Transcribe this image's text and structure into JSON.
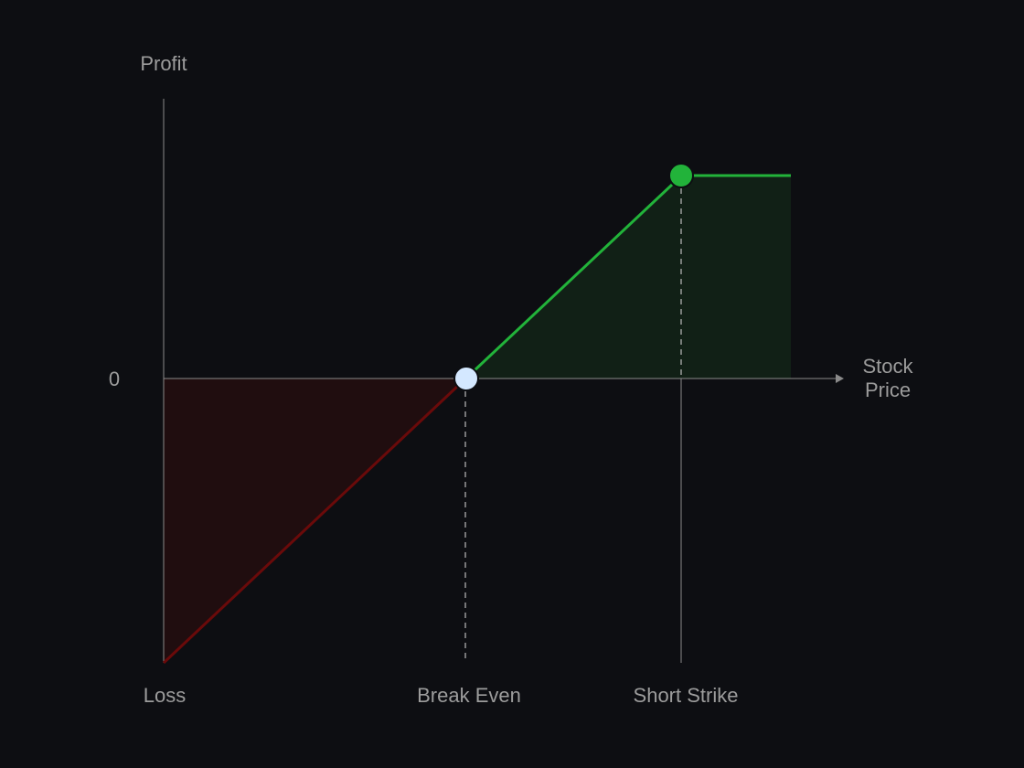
{
  "diagram": {
    "y_axis_label": "Profit",
    "zero_label": "0",
    "x_axis_label_line1": "Stock",
    "x_axis_label_line2": "Price",
    "x_labels": [
      "Loss",
      "Break Even",
      "Short Strike"
    ],
    "points": {
      "break_even": "Break Even",
      "short_strike": "Short Strike"
    },
    "colors": {
      "background": "#0d0e12",
      "axis": "#9a9a9a",
      "profit_line": "#22b33a",
      "profit_fill": "#112016",
      "loss_line": "#6a0a0a",
      "loss_fill": "#200d0f",
      "break_even_marker": "#d4e8ff",
      "short_strike_marker": "#22b33a"
    }
  }
}
